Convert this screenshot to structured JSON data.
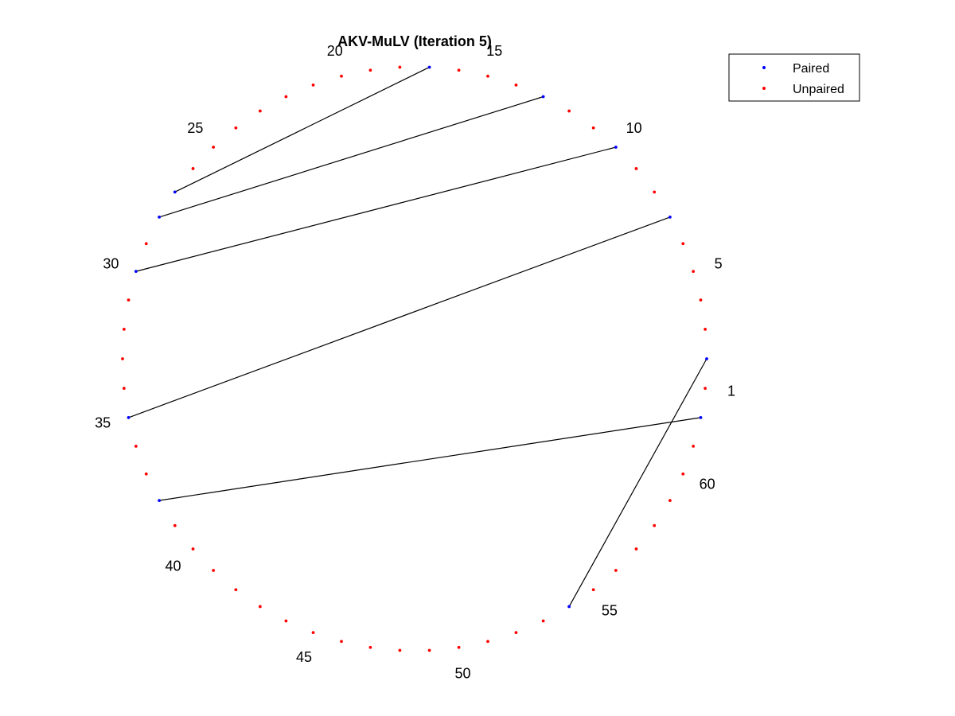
{
  "chart_data": {
    "type": "arc-diagram",
    "title": "AKV-MuLV (Iteration 5)",
    "n_positions": 62,
    "position_labels": [
      "1",
      "5",
      "10",
      "15",
      "20",
      "25",
      "30",
      "35",
      "40",
      "45",
      "50",
      "55",
      "60"
    ],
    "label_positions": [
      1,
      5,
      10,
      15,
      20,
      25,
      30,
      35,
      40,
      45,
      50,
      55,
      60
    ],
    "pairs": [
      [
        2,
        54
      ],
      [
        7,
        35
      ],
      [
        10,
        30
      ],
      [
        13,
        28
      ],
      [
        17,
        27
      ],
      [
        38,
        62
      ]
    ],
    "legend": {
      "placement": "top-right",
      "entries": [
        {
          "name": "Paired",
          "color": "#0000ff"
        },
        {
          "name": "Unpaired",
          "color": "#ff0000"
        }
      ]
    },
    "colors": {
      "paired": "#0000ff",
      "unpaired": "#ff0000",
      "line": "#000000"
    }
  }
}
